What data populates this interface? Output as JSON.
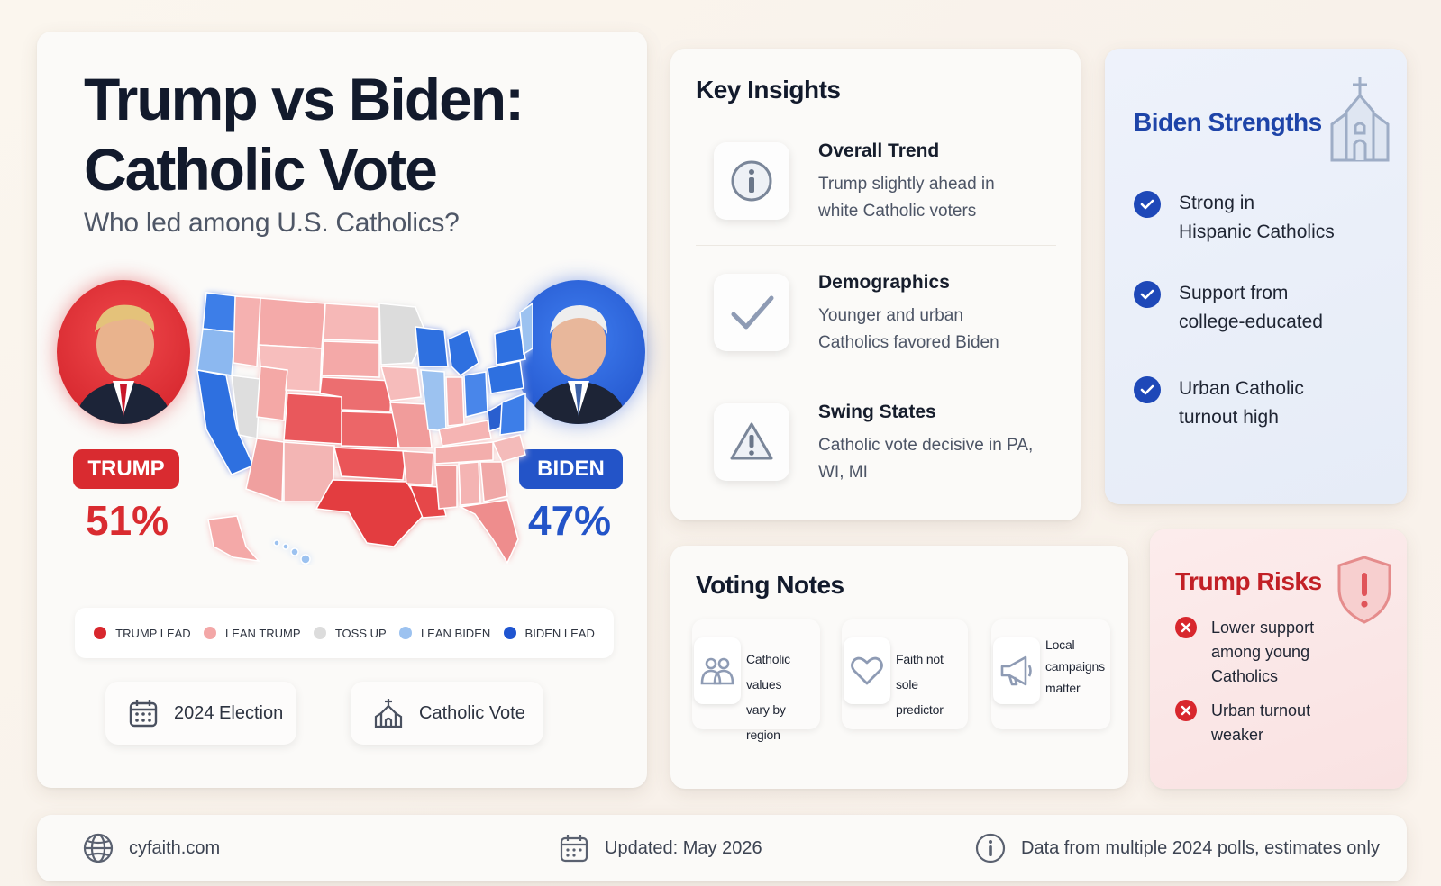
{
  "header": {
    "title_line1": "Trump vs Biden:",
    "title_line2": "Catholic Vote",
    "subtitle": "Who led among U.S. Catholics?"
  },
  "candidates": {
    "trump": {
      "label": "TRUMP",
      "percent": "51%",
      "color": "#d92b30"
    },
    "biden": {
      "label": "BIDEN",
      "percent": "47%",
      "color": "#2354c8"
    }
  },
  "legend": [
    {
      "label": "TRUMP LEAD",
      "color": "#d8272d"
    },
    {
      "label": "LEAN TRUMP",
      "color": "#f3a7a7"
    },
    {
      "label": "TOSS UP",
      "color": "#dcdcdc"
    },
    {
      "label": "LEAN BIDEN",
      "color": "#9cc2f0"
    },
    {
      "label": "BIDEN LEAD",
      "color": "#1f55d0"
    }
  ],
  "tags": {
    "election": "2024 Election",
    "vote": "Catholic Vote"
  },
  "insights": {
    "title": "Key Insights",
    "items": [
      {
        "heading": "Overall Trend",
        "text": "Trump slightly ahead in white Catholic voters",
        "icon": "info-icon"
      },
      {
        "heading": "Demographics",
        "text": "Younger and urban Catholics favored Biden",
        "icon": "checkmark-icon"
      },
      {
        "heading": "Swing States",
        "text": "Catholic vote decisive in PA, WI, MI",
        "icon": "warning-icon"
      }
    ]
  },
  "strengths": {
    "title": "Biden Strengths",
    "items": [
      {
        "line1": "Strong in",
        "line2": "Hispanic Catholics"
      },
      {
        "line1": "Support from",
        "line2": "college-educated"
      },
      {
        "line1": "Urban Catholic",
        "line2": "turnout high"
      }
    ]
  },
  "notes": {
    "title": "Voting Notes",
    "items": [
      {
        "line1": "Catholic values",
        "line2": "vary by region",
        "line3": "",
        "icon": "people-icon"
      },
      {
        "line1": "Faith not sole",
        "line2": "predictor",
        "line3": "",
        "icon": "heart-icon"
      },
      {
        "line1": "Local",
        "line2": "campaigns",
        "line3": "matter",
        "icon": "megaphone-icon"
      }
    ]
  },
  "risks": {
    "title": "Trump Risks",
    "items": [
      {
        "line1": "Lower support",
        "line2": "among young",
        "line3": "Catholics"
      },
      {
        "line1": "Urban turnout",
        "line2": "weaker",
        "line3": ""
      }
    ]
  },
  "footer": {
    "site": "cyfaith.com",
    "updated": "Updated: May 2026",
    "note": "Data from multiple 2024 polls, estimates only"
  }
}
